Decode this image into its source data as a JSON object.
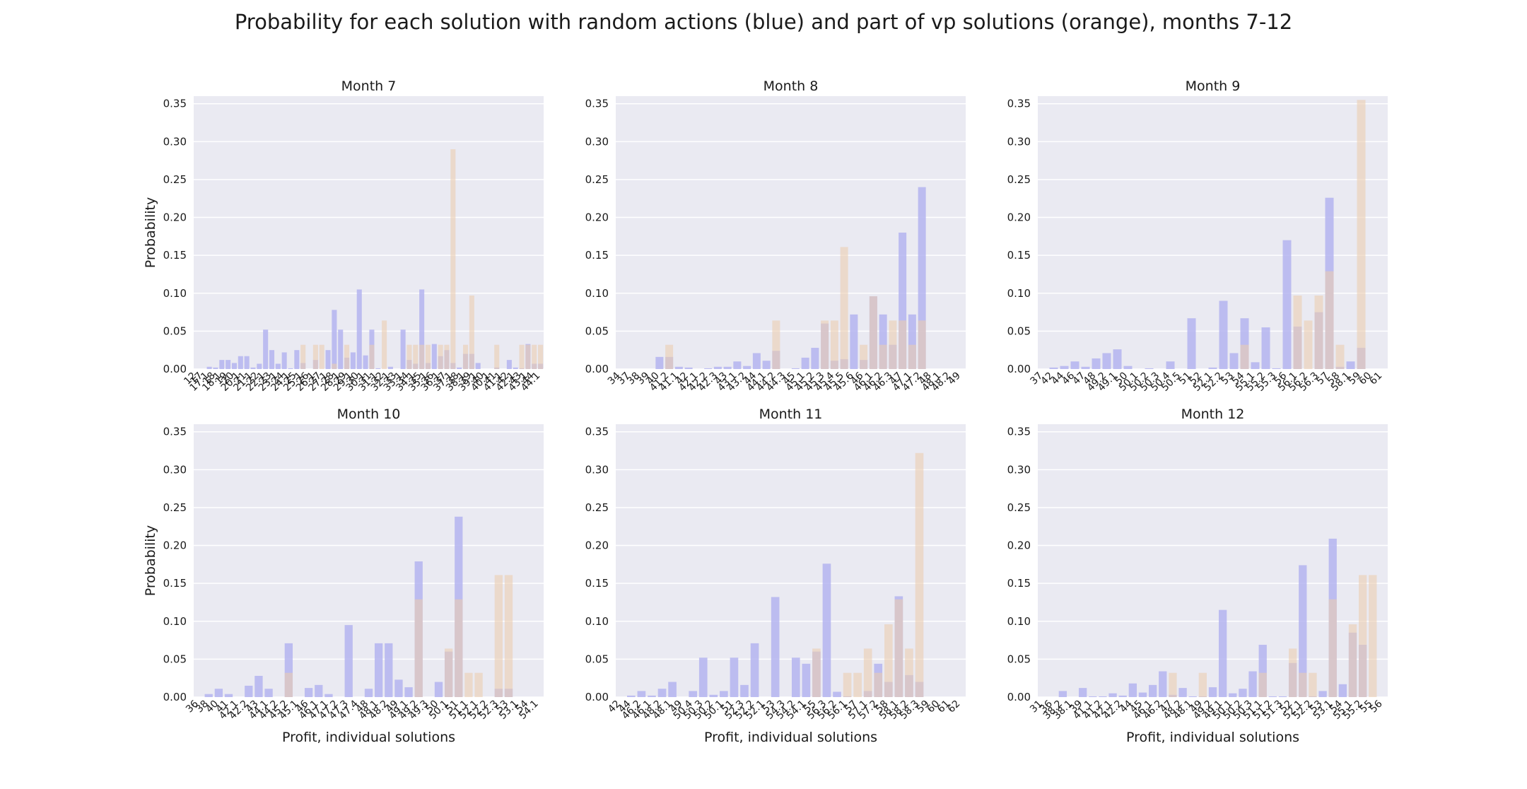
{
  "figure": {
    "suptitle": "Probability for each solution with random actions (blue) and part of vp solutions (orange), months 7-12",
    "colors": {
      "background": "#eaeaf2",
      "grid": "#ffffff",
      "blue": "#b4b4f0",
      "orange": "#ebcdb0",
      "overlap": "#a28eb8",
      "text": "#1a1a1a"
    }
  },
  "chart_data": [
    {
      "type": "bar",
      "title": "Month 7",
      "ylabel": "Probability",
      "xlabel": "",
      "ylim": [
        0,
        0.36
      ],
      "yticks": [
        0.0,
        0.05,
        0.1,
        0.15,
        0.2,
        0.25,
        0.3,
        0.35
      ],
      "grid": true,
      "categories": [
        "12",
        "17",
        "17.1",
        "18",
        "18.1",
        "19",
        "20",
        "20.1",
        "21",
        "21.1",
        "22",
        "22.1",
        "23",
        "23.1",
        "24",
        "24.1",
        "25",
        "25.1",
        "26",
        "26.1",
        "27",
        "27.1",
        "28",
        "28.1",
        "29",
        "29.1",
        "30",
        "30.1",
        "31",
        "31.1",
        "32",
        "32.1",
        "33",
        "33.1",
        "34",
        "34.1",
        "35",
        "35.1",
        "36",
        "36.1",
        "37",
        "37.1",
        "38",
        "38.1",
        "39",
        "39.1",
        "40",
        "40.1",
        "41",
        "41.1",
        "42",
        "42.1",
        "43",
        "43.1",
        "44",
        "44.1"
      ],
      "series": [
        {
          "name": "random actions",
          "color": "blue",
          "values": [
            0,
            0,
            0.003,
            0.002,
            0.012,
            0.012,
            0.008,
            0.017,
            0.017,
            0.002,
            0.007,
            0.052,
            0.025,
            0.007,
            0.022,
            0.001,
            0.025,
            0.008,
            0,
            0.012,
            0,
            0.025,
            0.078,
            0.052,
            0.015,
            0.022,
            0.105,
            0.018,
            0.052,
            0.001,
            0,
            0.003,
            0,
            0.052,
            0.012,
            0.007,
            0.105,
            0.008,
            0.033,
            0.017,
            0.025,
            0.008,
            0.002,
            0.02,
            0.02,
            0.008,
            0,
            0,
            0.002,
            0,
            0.012,
            0.002,
            0.001,
            0.033,
            0.007,
            0.007
          ]
        },
        {
          "name": "part of vp solutions",
          "color": "orange",
          "values": [
            0,
            0,
            0,
            0,
            0,
            0,
            0,
            0,
            0,
            0,
            0,
            0,
            0,
            0,
            0,
            0,
            0,
            0.032,
            0,
            0.032,
            0.032,
            0,
            0.007,
            0,
            0.032,
            0,
            0,
            0,
            0.032,
            0,
            0.064,
            0,
            0,
            0,
            0.032,
            0.032,
            0.032,
            0.032,
            0,
            0.032,
            0.032,
            0.29,
            0,
            0.032,
            0.097,
            0,
            0,
            0,
            0.032,
            0,
            0,
            0,
            0.032,
            0.032,
            0.032,
            0.032
          ]
        }
      ]
    },
    {
      "type": "bar",
      "title": "Month 8",
      "ylabel": "",
      "xlabel": "",
      "ylim": [
        0,
        0.36
      ],
      "yticks": [
        0.0,
        0.05,
        0.1,
        0.15,
        0.2,
        0.25,
        0.3,
        0.35
      ],
      "grid": true,
      "categories": [
        "34",
        "37",
        "38",
        "39",
        "40",
        "41.2",
        "41.1",
        "42",
        "42.1",
        "42.2",
        "42.3",
        "43",
        "43.1",
        "43.2",
        "44",
        "44.1",
        "44.2",
        "44.3",
        "45",
        "45.1",
        "45.2",
        "45.3",
        "45.4",
        "45.5",
        "45.6",
        "46",
        "46.1",
        "46.2",
        "46.3",
        "47",
        "47.1",
        "47.2",
        "48",
        "48.1",
        "48.2",
        "49"
      ],
      "series": [
        {
          "name": "random actions",
          "color": "blue",
          "values": [
            0,
            0,
            0,
            0,
            0.016,
            0.016,
            0.003,
            0.002,
            0,
            0.001,
            0.003,
            0.003,
            0.01,
            0.004,
            0.021,
            0.011,
            0.024,
            0,
            0.001,
            0.015,
            0.028,
            0.06,
            0.011,
            0.013,
            0.072,
            0.012,
            0.096,
            0.072,
            0.032,
            0.18,
            0.072,
            0.24,
            0,
            0,
            0,
            0
          ]
        },
        {
          "name": "part of vp solutions",
          "color": "orange",
          "values": [
            0,
            0,
            0,
            0,
            0,
            0.032,
            0,
            0,
            0,
            0,
            0,
            0,
            0,
            0,
            0,
            0,
            0.064,
            0,
            0,
            0,
            0,
            0.064,
            0.064,
            0.161,
            0,
            0.032,
            0.096,
            0.032,
            0.064,
            0.064,
            0.032,
            0.064,
            0,
            0,
            0,
            0
          ]
        }
      ]
    },
    {
      "type": "bar",
      "title": "Month 9",
      "ylabel": "",
      "xlabel": "",
      "ylim": [
        0,
        0.36
      ],
      "yticks": [
        0.0,
        0.05,
        0.1,
        0.15,
        0.2,
        0.25,
        0.3,
        0.35
      ],
      "grid": true,
      "categories": [
        "37",
        "42",
        "44",
        "46",
        "47",
        "48",
        "49.2",
        "49.1",
        "50",
        "50.1",
        "50.2",
        "50.3",
        "50.4",
        "50.5",
        "51",
        "52",
        "52.1",
        "52.2",
        "53",
        "54",
        "55.1",
        "55.2",
        "55.3",
        "56",
        "56.1",
        "56.2",
        "56.3",
        "57",
        "58",
        "58.1",
        "59",
        "60",
        "61"
      ],
      "series": [
        {
          "name": "random actions",
          "color": "blue",
          "values": [
            0,
            0.002,
            0.004,
            0.01,
            0.003,
            0.014,
            0.021,
            0.026,
            0.004,
            0,
            0.001,
            0,
            0.01,
            0,
            0.067,
            0,
            0.002,
            0.09,
            0.021,
            0.067,
            0.009,
            0.055,
            0.001,
            0.17,
            0.056,
            0,
            0.075,
            0.226,
            0.003,
            0.01,
            0.028,
            0,
            0
          ]
        },
        {
          "name": "part of vp solutions",
          "color": "orange",
          "values": [
            0,
            0,
            0,
            0,
            0,
            0,
            0,
            0,
            0,
            0,
            0,
            0,
            0,
            0,
            0,
            0,
            0,
            0,
            0,
            0.032,
            0,
            0,
            0,
            0,
            0.097,
            0.064,
            0.097,
            0.129,
            0.032,
            0,
            0.355,
            0,
            0
          ]
        }
      ]
    },
    {
      "type": "bar",
      "title": "Month 10",
      "ylabel": "Probability",
      "xlabel": "Profit, individual solutions",
      "ylim": [
        0,
        0.36
      ],
      "yticks": [
        0.0,
        0.05,
        0.1,
        0.15,
        0.2,
        0.25,
        0.3,
        0.35
      ],
      "grid": true,
      "categories": [
        "36",
        "38",
        "40",
        "41",
        "42.1",
        "42.2",
        "43",
        "44.1",
        "44.2",
        "45.2",
        "45.1",
        "46",
        "46.1",
        "47.1",
        "47.2",
        "47.3",
        "47.4",
        "48",
        "48.1",
        "48.2",
        "49",
        "49.1",
        "49.2",
        "49.3",
        "50",
        "50.1",
        "51",
        "51.1",
        "52.1",
        "52.2",
        "52.3",
        "53",
        "53.1",
        "54",
        "54.1"
      ],
      "series": [
        {
          "name": "random actions",
          "color": "blue",
          "values": [
            0,
            0.004,
            0.011,
            0.004,
            0,
            0.015,
            0.028,
            0.011,
            0,
            0.071,
            0,
            0.012,
            0.016,
            0.004,
            0,
            0.095,
            0,
            0.011,
            0.071,
            0.071,
            0.023,
            0.013,
            0.179,
            0,
            0.02,
            0.06,
            0.238,
            0,
            0,
            0,
            0.011,
            0.011,
            0,
            0,
            0
          ]
        },
        {
          "name": "part of vp solutions",
          "color": "orange",
          "values": [
            0,
            0,
            0,
            0,
            0,
            0,
            0,
            0,
            0,
            0.032,
            0,
            0,
            0,
            0,
            0,
            0,
            0,
            0,
            0,
            0,
            0,
            0,
            0.129,
            0,
            0,
            0.064,
            0.129,
            0.032,
            0.032,
            0,
            0.161,
            0.161,
            0,
            0,
            0
          ]
        }
      ]
    },
    {
      "type": "bar",
      "title": "Month 11",
      "ylabel": "",
      "xlabel": "Profit, individual solutions",
      "ylim": [
        0,
        0.36
      ],
      "yticks": [
        0.0,
        0.05,
        0.1,
        0.15,
        0.2,
        0.25,
        0.3,
        0.35
      ],
      "grid": true,
      "categories": [
        "42",
        "44",
        "46.2",
        "46.1",
        "48.2",
        "48.1",
        "49",
        "50.4",
        "50.3",
        "50.2",
        "50.1",
        "51",
        "52.3",
        "52.2",
        "52.1",
        "53",
        "54.3",
        "54.2",
        "54.1",
        "55",
        "56.3",
        "56.2",
        "56.1",
        "57",
        "57.1",
        "57.2",
        "58",
        "58.1",
        "58.2",
        "58.3",
        "59",
        "60",
        "61",
        "62"
      ],
      "series": [
        {
          "name": "random actions",
          "color": "blue",
          "values": [
            0,
            0.002,
            0.008,
            0.002,
            0.011,
            0.02,
            0,
            0.008,
            0.052,
            0.003,
            0.008,
            0.052,
            0.016,
            0.071,
            0,
            0.132,
            0,
            0.052,
            0.044,
            0.06,
            0.176,
            0.007,
            0.001,
            0,
            0.008,
            0.044,
            0.02,
            0.133,
            0.029,
            0.02,
            0,
            0,
            0,
            0
          ]
        },
        {
          "name": "part of vp solutions",
          "color": "orange",
          "values": [
            0,
            0,
            0,
            0,
            0,
            0,
            0,
            0,
            0,
            0,
            0,
            0,
            0,
            0,
            0,
            0,
            0,
            0,
            0,
            0.064,
            0,
            0,
            0.032,
            0.032,
            0.064,
            0.032,
            0.096,
            0.129,
            0.064,
            0.322,
            0,
            0,
            0,
            0
          ]
        }
      ]
    },
    {
      "type": "bar",
      "title": "Month 12",
      "ylabel": "",
      "xlabel": "Profit, individual solutions",
      "ylim": [
        0,
        0.36
      ],
      "yticks": [
        0.0,
        0.05,
        0.1,
        0.15,
        0.2,
        0.25,
        0.3,
        0.35
      ],
      "grid": true,
      "categories": [
        "31",
        "36",
        "38.2",
        "38.1",
        "39",
        "41.1",
        "41.2",
        "42.1",
        "42.2",
        "44",
        "45",
        "46.1",
        "46.2",
        "47",
        "48.2",
        "48.1",
        "49",
        "49.2",
        "49.1",
        "50.1",
        "50.2",
        "50.3",
        "51.1",
        "51.2",
        "51.3",
        "52",
        "52.1",
        "52.2",
        "53",
        "53.1",
        "54",
        "55.1",
        "55.2",
        "55",
        "56"
      ],
      "series": [
        {
          "name": "random actions",
          "color": "blue",
          "values": [
            0,
            0,
            0.008,
            0,
            0.012,
            0.001,
            0.001,
            0.005,
            0.002,
            0.018,
            0.006,
            0.016,
            0.034,
            0.003,
            0.012,
            0.001,
            0.001,
            0.013,
            0.115,
            0.005,
            0.011,
            0.034,
            0.069,
            0.001,
            0.001,
            0.045,
            0.174,
            0.001,
            0.008,
            0.209,
            0.017,
            0.085,
            0.069,
            0,
            0
          ]
        },
        {
          "name": "part of vp solutions",
          "color": "orange",
          "values": [
            0,
            0,
            0,
            0,
            0,
            0,
            0,
            0,
            0,
            0,
            0,
            0,
            0,
            0.032,
            0,
            0,
            0.032,
            0,
            0,
            0,
            0,
            0,
            0.032,
            0,
            0,
            0.064,
            0.032,
            0.032,
            0,
            0.129,
            0,
            0.096,
            0.161,
            0.161,
            0
          ]
        }
      ]
    }
  ]
}
